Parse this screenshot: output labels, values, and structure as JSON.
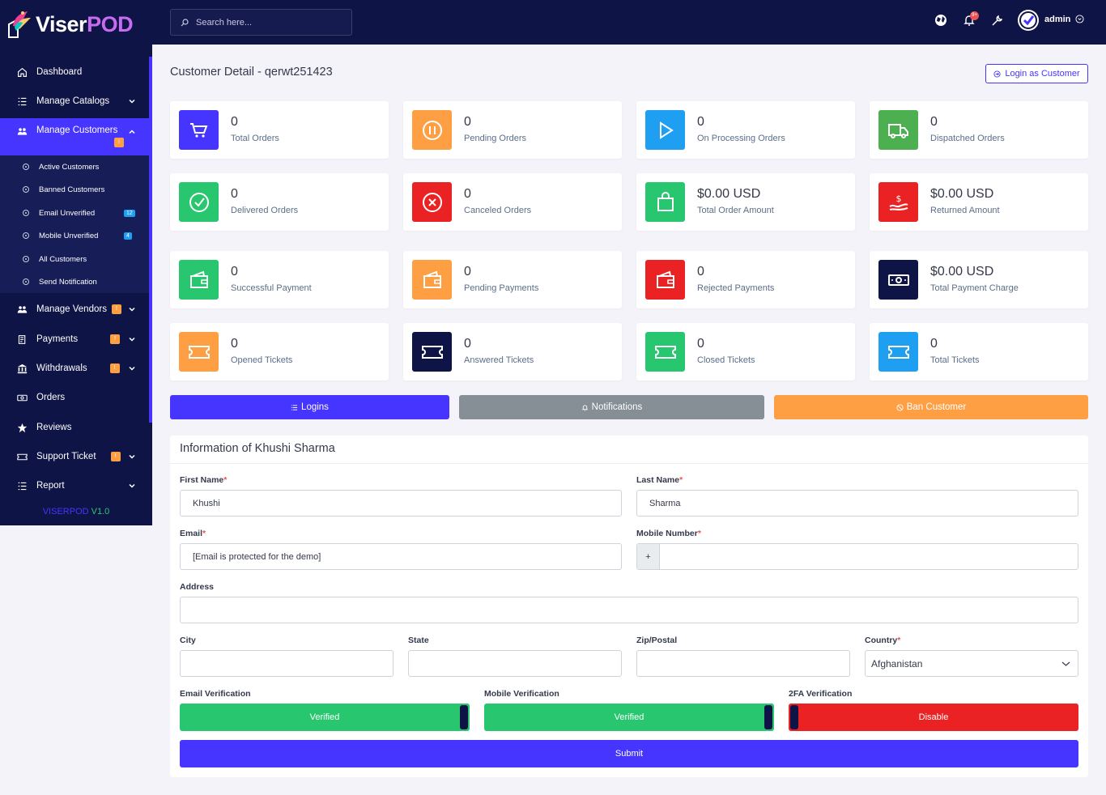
{
  "brand": {
    "name_part1": "Viser",
    "name_part2": "POD",
    "version_label": "VISERPOD",
    "version_number": "V1.0"
  },
  "colors": {
    "primary": "#4634ff",
    "sidebar": "#0f1446",
    "success": "#28c76f",
    "danger": "#ea5455",
    "warning": "#ff9f43",
    "info": "#1e9ff2",
    "secondary": "#868e96"
  },
  "search": {
    "placeholder": "Search here..."
  },
  "topbar": {
    "notification_count": "9+",
    "user": "admin"
  },
  "sidebar": {
    "items": [
      {
        "label": "Dashboard",
        "icon": "home-icon"
      },
      {
        "label": "Manage Catalogs",
        "icon": "list-icon"
      },
      {
        "label": "Manage Customers",
        "icon": "users-icon",
        "badge": "!"
      },
      {
        "label": "Manage Vendors",
        "icon": "users-icon",
        "badge": "!"
      },
      {
        "label": "Payments",
        "icon": "payments-icon",
        "badge": "!"
      },
      {
        "label": "Withdrawals",
        "icon": "bank-icon",
        "badge": "!"
      },
      {
        "label": "Orders",
        "icon": "money-icon"
      },
      {
        "label": "Reviews",
        "icon": "star-icon"
      },
      {
        "label": "Support Ticket",
        "icon": "ticket-icon",
        "badge": "!"
      },
      {
        "label": "Report",
        "icon": "list-icon"
      }
    ],
    "subitems": [
      {
        "label": "Active Customers"
      },
      {
        "label": "Banned Customers"
      },
      {
        "label": "Email Unverified",
        "count": "12"
      },
      {
        "label": "Mobile Unverified",
        "count": "4"
      },
      {
        "label": "All Customers"
      },
      {
        "label": "Send Notification"
      }
    ]
  },
  "page": {
    "title": "Customer Detail - qerwt251423",
    "login_as_customer": "Login as Customer"
  },
  "stats": [
    {
      "value": "0",
      "label": "Total Orders",
      "icon": "cart-icon",
      "color": "#4634ff"
    },
    {
      "value": "0",
      "label": "Pending Orders",
      "icon": "pause-icon",
      "color": "#ff9f43"
    },
    {
      "value": "0",
      "label": "On Processing Orders",
      "icon": "play-icon",
      "color": "#1e9ff2"
    },
    {
      "value": "0",
      "label": "Dispatched Orders",
      "icon": "truck-icon",
      "color": "#4caf50"
    },
    {
      "value": "0",
      "label": "Delivered Orders",
      "icon": "check-circle-icon",
      "color": "#28c76f"
    },
    {
      "value": "0",
      "label": "Canceled Orders",
      "icon": "x-circle-icon",
      "color": "#ea2224"
    },
    {
      "value": "$0.00 USD",
      "label": "Total Order Amount",
      "icon": "shopping-bag-icon",
      "color": "#28c76f"
    },
    {
      "value": "$0.00 USD",
      "label": "Returned Amount",
      "icon": "hand-money-icon",
      "color": "#ea2224"
    },
    {
      "value": "0",
      "label": "Successful Payment",
      "icon": "wallet-icon",
      "color": "#28c76f"
    },
    {
      "value": "0",
      "label": "Pending Payments",
      "icon": "wallet-icon",
      "color": "#ff9f43"
    },
    {
      "value": "0",
      "label": "Rejected Payments",
      "icon": "wallet-icon",
      "color": "#ea2224"
    },
    {
      "value": "$0.00 USD",
      "label": "Total Payment Charge",
      "icon": "money-bill-icon",
      "color": "#0f1446"
    },
    {
      "value": "0",
      "label": "Opened Tickets",
      "icon": "ticket-icon",
      "color": "#ff9f43"
    },
    {
      "value": "0",
      "label": "Answered Tickets",
      "icon": "ticket-icon",
      "color": "#0f1446"
    },
    {
      "value": "0",
      "label": "Closed Tickets",
      "icon": "ticket-icon",
      "color": "#28c76f"
    },
    {
      "value": "0",
      "label": "Total Tickets",
      "icon": "ticket-icon",
      "color": "#1e9ff2"
    }
  ],
  "actions": {
    "logins": "Logins",
    "notifications": "Notifications",
    "ban": "Ban Customer"
  },
  "form": {
    "title": "Information of Khushi Sharma",
    "first_name_label": "First Name",
    "first_name": "Khushi",
    "last_name_label": "Last Name",
    "last_name": "Sharma",
    "email_label": "Email",
    "email": "[Email is protected for the demo]",
    "mobile_label": "Mobile Number",
    "mobile_prefix": "+",
    "mobile": "",
    "address_label": "Address",
    "address": "",
    "city_label": "City",
    "state_label": "State",
    "zip_label": "Zip/Postal",
    "country_label": "Country",
    "country": "Afghanistan",
    "email_verification_label": "Email Verification",
    "email_verification": "Verified",
    "mobile_verification_label": "Mobile Verification",
    "mobile_verification": "Verified",
    "twofa_label": "2FA Verification",
    "twofa": "Disable",
    "submit": "Submit",
    "required_mark": "*"
  }
}
